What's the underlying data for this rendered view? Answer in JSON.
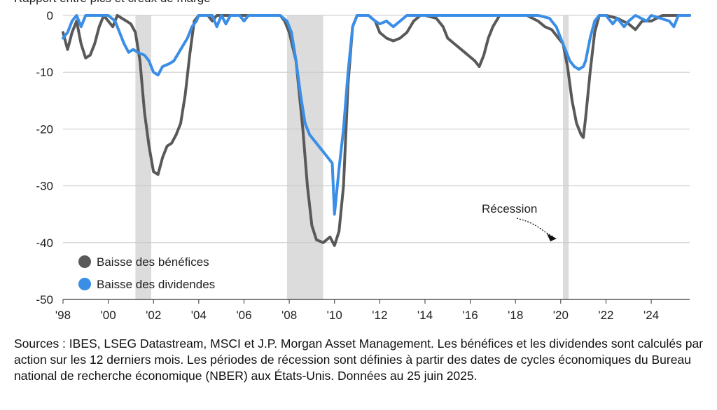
{
  "header": {
    "text": "Rapport entre pics et creux de marge"
  },
  "chart_data": {
    "type": "line",
    "title": "",
    "xlabel": "",
    "ylabel": "",
    "xlim": [
      1998.0,
      2025.7
    ],
    "ylim": [
      -50,
      0
    ],
    "yticks": [
      0,
      -10,
      -20,
      -30,
      -40,
      -50
    ],
    "xticks": [
      {
        "value": 1998,
        "label": "'98"
      },
      {
        "value": 2000,
        "label": "'00"
      },
      {
        "value": 2002,
        "label": "'02"
      },
      {
        "value": 2004,
        "label": "'04"
      },
      {
        "value": 2006,
        "label": "'06"
      },
      {
        "value": 2008,
        "label": "'08"
      },
      {
        "value": 2010,
        "label": "'10"
      },
      {
        "value": 2012,
        "label": "'12"
      },
      {
        "value": 2014,
        "label": "'14"
      },
      {
        "value": 2016,
        "label": "'16"
      },
      {
        "value": 2018,
        "label": "'18"
      },
      {
        "value": 2020,
        "label": "'20"
      },
      {
        "value": 2022,
        "label": "'22"
      },
      {
        "value": 2024,
        "label": "'24"
      }
    ],
    "recessions": [
      [
        2001.2,
        2001.9
      ],
      [
        2007.9,
        2009.5
      ],
      [
        2020.1,
        2020.35
      ]
    ],
    "series": [
      {
        "name": "Baisse des bénéfices",
        "color": "#595959",
        "points": [
          [
            1998.0,
            -3
          ],
          [
            1998.2,
            -6
          ],
          [
            1998.4,
            -3
          ],
          [
            1998.6,
            -1
          ],
          [
            1998.8,
            -5
          ],
          [
            1999.0,
            -7.5
          ],
          [
            1999.2,
            -7
          ],
          [
            1999.4,
            -5
          ],
          [
            1999.6,
            -2
          ],
          [
            1999.8,
            0
          ],
          [
            2000.0,
            -1
          ],
          [
            2000.2,
            -2
          ],
          [
            2000.4,
            0
          ],
          [
            2000.6,
            -0.5
          ],
          [
            2000.8,
            -1
          ],
          [
            2001.0,
            -1.5
          ],
          [
            2001.2,
            -3
          ],
          [
            2001.4,
            -8
          ],
          [
            2001.6,
            -17
          ],
          [
            2001.8,
            -23
          ],
          [
            2002.0,
            -27.5
          ],
          [
            2002.2,
            -28
          ],
          [
            2002.4,
            -25
          ],
          [
            2002.6,
            -23
          ],
          [
            2002.8,
            -22.5
          ],
          [
            2003.0,
            -21
          ],
          [
            2003.2,
            -19
          ],
          [
            2003.4,
            -14
          ],
          [
            2003.6,
            -7
          ],
          [
            2003.8,
            -1
          ],
          [
            2004.0,
            0
          ],
          [
            2004.4,
            0
          ],
          [
            2004.6,
            -1
          ],
          [
            2004.8,
            0
          ],
          [
            2005.0,
            0
          ],
          [
            2006.0,
            0
          ],
          [
            2007.0,
            0
          ],
          [
            2007.6,
            0
          ],
          [
            2007.8,
            -1
          ],
          [
            2008.0,
            -3
          ],
          [
            2008.3,
            -8
          ],
          [
            2008.6,
            -20
          ],
          [
            2008.8,
            -30
          ],
          [
            2009.0,
            -37
          ],
          [
            2009.2,
            -39.5
          ],
          [
            2009.5,
            -40
          ],
          [
            2009.8,
            -39
          ],
          [
            2010.0,
            -40.5
          ],
          [
            2010.2,
            -38
          ],
          [
            2010.4,
            -30
          ],
          [
            2010.6,
            -12
          ],
          [
            2010.8,
            -2
          ],
          [
            2011.0,
            0
          ],
          [
            2011.5,
            0
          ],
          [
            2011.8,
            -1
          ],
          [
            2012.0,
            -3
          ],
          [
            2012.3,
            -4
          ],
          [
            2012.6,
            -4.5
          ],
          [
            2012.9,
            -4
          ],
          [
            2013.2,
            -3
          ],
          [
            2013.5,
            -1
          ],
          [
            2013.8,
            0
          ],
          [
            2014.0,
            0
          ],
          [
            2014.5,
            -0.5
          ],
          [
            2014.8,
            -2
          ],
          [
            2015.0,
            -4
          ],
          [
            2015.3,
            -5
          ],
          [
            2015.6,
            -6
          ],
          [
            2015.9,
            -7
          ],
          [
            2016.2,
            -8
          ],
          [
            2016.4,
            -9
          ],
          [
            2016.6,
            -7
          ],
          [
            2016.8,
            -4
          ],
          [
            2017.0,
            -2
          ],
          [
            2017.3,
            0
          ],
          [
            2018.0,
            0
          ],
          [
            2018.5,
            0
          ],
          [
            2019.0,
            -1
          ],
          [
            2019.3,
            -2
          ],
          [
            2019.6,
            -2.5
          ],
          [
            2019.9,
            -4
          ],
          [
            2020.1,
            -5
          ],
          [
            2020.3,
            -9
          ],
          [
            2020.5,
            -15
          ],
          [
            2020.7,
            -19
          ],
          [
            2020.9,
            -21
          ],
          [
            2021.0,
            -21.5
          ],
          [
            2021.1,
            -18
          ],
          [
            2021.3,
            -10
          ],
          [
            2021.5,
            -3
          ],
          [
            2021.7,
            0
          ],
          [
            2022.0,
            0
          ],
          [
            2022.5,
            -0.5
          ],
          [
            2023.0,
            -1.5
          ],
          [
            2023.3,
            -2.5
          ],
          [
            2023.6,
            -1
          ],
          [
            2024.0,
            -1
          ],
          [
            2024.5,
            0
          ],
          [
            2025.0,
            0
          ],
          [
            2025.7,
            0
          ]
        ]
      },
      {
        "name": "Baisse des dividendes",
        "color": "#3a8ee6",
        "points": [
          [
            1998.0,
            -4
          ],
          [
            1998.2,
            -3
          ],
          [
            1998.4,
            -1
          ],
          [
            1998.6,
            0
          ],
          [
            1998.8,
            -2
          ],
          [
            1999.0,
            0
          ],
          [
            1999.5,
            0
          ],
          [
            2000.0,
            0
          ],
          [
            2000.3,
            -1
          ],
          [
            2000.5,
            -3
          ],
          [
            2000.7,
            -5
          ],
          [
            2000.9,
            -6.5
          ],
          [
            2001.1,
            -6
          ],
          [
            2001.3,
            -6.5
          ],
          [
            2001.6,
            -7
          ],
          [
            2001.8,
            -8
          ],
          [
            2002.0,
            -10
          ],
          [
            2002.2,
            -10.5
          ],
          [
            2002.4,
            -9
          ],
          [
            2002.7,
            -8.5
          ],
          [
            2002.9,
            -8
          ],
          [
            2003.2,
            -6
          ],
          [
            2003.5,
            -4
          ],
          [
            2003.7,
            -2
          ],
          [
            2003.9,
            -1
          ],
          [
            2004.0,
            0
          ],
          [
            2004.6,
            0
          ],
          [
            2004.8,
            -2
          ],
          [
            2005.0,
            0
          ],
          [
            2005.2,
            -1.5
          ],
          [
            2005.4,
            0
          ],
          [
            2005.8,
            0
          ],
          [
            2006.0,
            -1
          ],
          [
            2006.2,
            0
          ],
          [
            2007.0,
            0
          ],
          [
            2007.6,
            0
          ],
          [
            2007.9,
            -1
          ],
          [
            2008.1,
            -3
          ],
          [
            2008.3,
            -8
          ],
          [
            2008.5,
            -14
          ],
          [
            2008.7,
            -19
          ],
          [
            2008.9,
            -21
          ],
          [
            2009.1,
            -22
          ],
          [
            2009.3,
            -23
          ],
          [
            2009.6,
            -24.5
          ],
          [
            2009.9,
            -26
          ],
          [
            2010.0,
            -35
          ],
          [
            2010.2,
            -27
          ],
          [
            2010.4,
            -20
          ],
          [
            2010.6,
            -10
          ],
          [
            2010.8,
            -2
          ],
          [
            2011.0,
            0
          ],
          [
            2011.5,
            0
          ],
          [
            2011.8,
            -1
          ],
          [
            2012.0,
            -1.5
          ],
          [
            2012.3,
            -1
          ],
          [
            2012.6,
            -2
          ],
          [
            2012.9,
            -1
          ],
          [
            2013.2,
            0
          ],
          [
            2014.0,
            0
          ],
          [
            2015.0,
            0
          ],
          [
            2016.0,
            0
          ],
          [
            2017.0,
            0
          ],
          [
            2018.0,
            0
          ],
          [
            2019.0,
            0
          ],
          [
            2019.5,
            -0.5
          ],
          [
            2019.8,
            -2
          ],
          [
            2020.0,
            -4
          ],
          [
            2020.2,
            -6
          ],
          [
            2020.4,
            -8
          ],
          [
            2020.6,
            -9
          ],
          [
            2020.8,
            -9.5
          ],
          [
            2021.0,
            -9
          ],
          [
            2021.1,
            -8
          ],
          [
            2021.3,
            -4
          ],
          [
            2021.5,
            -1
          ],
          [
            2021.7,
            0
          ],
          [
            2022.0,
            0
          ],
          [
            2022.3,
            -1.5
          ],
          [
            2022.5,
            -0.5
          ],
          [
            2022.8,
            -2
          ],
          [
            2023.0,
            -1
          ],
          [
            2023.3,
            0
          ],
          [
            2023.8,
            -1
          ],
          [
            2024.0,
            0
          ],
          [
            2024.8,
            -1
          ],
          [
            2025.0,
            -2
          ],
          [
            2025.2,
            0
          ],
          [
            2025.7,
            0
          ]
        ]
      }
    ],
    "legend": {
      "position": "bottom-left",
      "entries": [
        "Baisse des bénéfices",
        "Baisse des dividendes"
      ]
    },
    "annotation": {
      "text": "Récession"
    }
  },
  "caption": "Sources : IBES, LSEG Datastream, MSCI et J.P. Morgan Asset Management. Les bénéfices et les dividendes sont calculés par action sur les 12 derniers mois. Les périodes de récession sont définies à partir des dates de cycles économiques du Bureau national de recherche économique (NBER) aux États-Unis. Données au 25 juin 2025."
}
